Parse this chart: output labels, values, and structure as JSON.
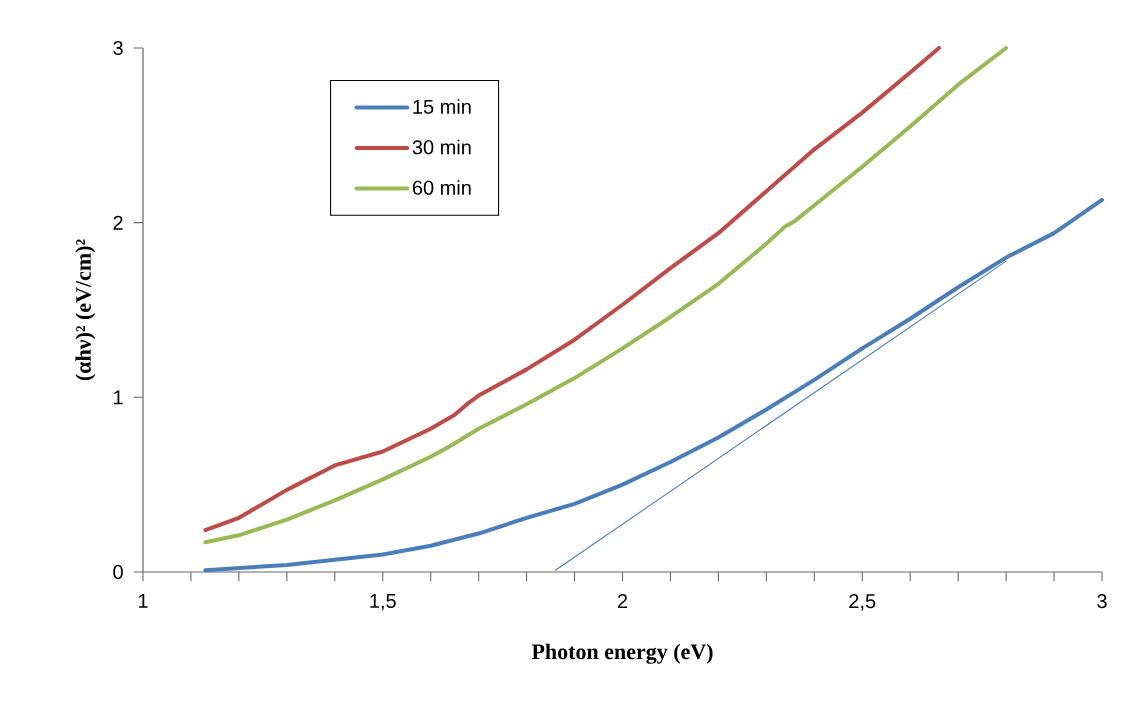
{
  "chart_data": {
    "type": "line",
    "xlabel": "Photon energy (eV)",
    "ylabel": "(αhν)² (eV/cm)²",
    "xlim": [
      1,
      3
    ],
    "ylim": [
      0,
      3
    ],
    "xticks": [
      1,
      {
        "value": 1.5,
        "label": "1,5"
      },
      2,
      {
        "value": 2.5,
        "label": "2,5"
      },
      3
    ],
    "yticks": [
      0,
      1,
      2,
      3
    ],
    "grid": false,
    "legend": "top left",
    "marker": "none",
    "line_style": "solid",
    "series": [
      {
        "name": "15 min",
        "color": "#4a7ebb",
        "x": [
          1.13,
          1.3,
          1.5,
          1.6,
          1.7,
          1.8,
          1.9,
          2.0,
          2.1,
          2.2,
          2.3,
          2.4,
          2.5,
          2.6,
          2.7,
          2.8,
          2.9,
          3.0
        ],
        "values": [
          0.01,
          0.04,
          0.1,
          0.15,
          0.22,
          0.31,
          0.39,
          0.5,
          0.63,
          0.77,
          0.93,
          1.1,
          1.28,
          1.45,
          1.63,
          1.8,
          1.94,
          2.13
        ]
      },
      {
        "name": "30 min",
        "color": "#be4b48",
        "x": [
          1.13,
          1.2,
          1.3,
          1.4,
          1.5,
          1.6,
          1.65,
          1.68,
          1.7,
          1.8,
          1.9,
          2.0,
          2.1,
          2.2,
          2.3,
          2.4,
          2.5,
          2.6,
          2.66
        ],
        "values": [
          0.24,
          0.31,
          0.47,
          0.61,
          0.69,
          0.82,
          0.9,
          0.97,
          1.01,
          1.16,
          1.33,
          1.53,
          1.74,
          1.94,
          2.18,
          2.42,
          2.63,
          2.86,
          3.0
        ]
      },
      {
        "name": "60 min",
        "color": "#98b954",
        "x": [
          1.13,
          1.2,
          1.3,
          1.4,
          1.5,
          1.6,
          1.64,
          1.7,
          1.8,
          1.9,
          2.0,
          2.1,
          2.2,
          2.3,
          2.34,
          2.36,
          2.4,
          2.5,
          2.6,
          2.7,
          2.8
        ],
        "values": [
          0.17,
          0.21,
          0.3,
          0.41,
          0.53,
          0.66,
          0.72,
          0.82,
          0.96,
          1.11,
          1.28,
          1.46,
          1.65,
          1.88,
          1.98,
          2.01,
          2.1,
          2.32,
          2.55,
          2.79,
          3.0
        ]
      },
      {
        "type": "line",
        "color": "#4a7ebb",
        "x": [
          1.86,
          2.8
        ],
        "values": [
          0.01,
          1.78
        ]
      }
    ]
  }
}
